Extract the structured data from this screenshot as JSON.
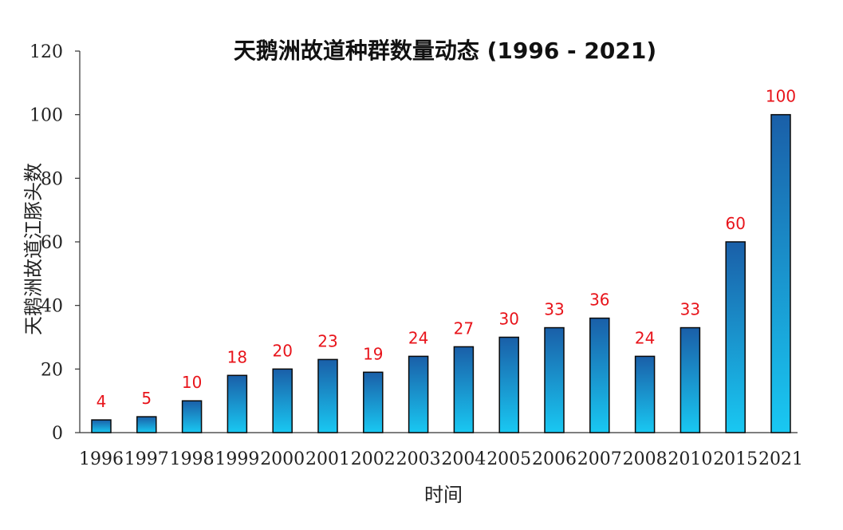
{
  "chart_data": {
    "type": "bar",
    "title": "天鹅洲故道种群数量动态 (1996 - 2021)",
    "xlabel": "时间",
    "ylabel": "天鹅洲故道江豚头数",
    "categories": [
      "1996",
      "1997",
      "1998",
      "1999",
      "2000",
      "2001",
      "2002",
      "2003",
      "2004",
      "2005",
      "2006",
      "2007",
      "2008",
      "2010",
      "2015",
      "2021"
    ],
    "values": [
      4,
      5,
      10,
      18,
      20,
      23,
      19,
      24,
      27,
      30,
      33,
      36,
      24,
      33,
      60,
      100
    ],
    "ylim": [
      0,
      120
    ],
    "yticks": [
      0,
      20,
      40,
      60,
      80,
      100,
      120
    ],
    "grid": false,
    "legend": "none",
    "colors": {
      "bar_top": "#1a5fa8",
      "bar_bottom": "#19c8f2",
      "bar_border": "#0a0a0a",
      "data_label": "#e8141b",
      "axis": "#333333"
    }
  }
}
